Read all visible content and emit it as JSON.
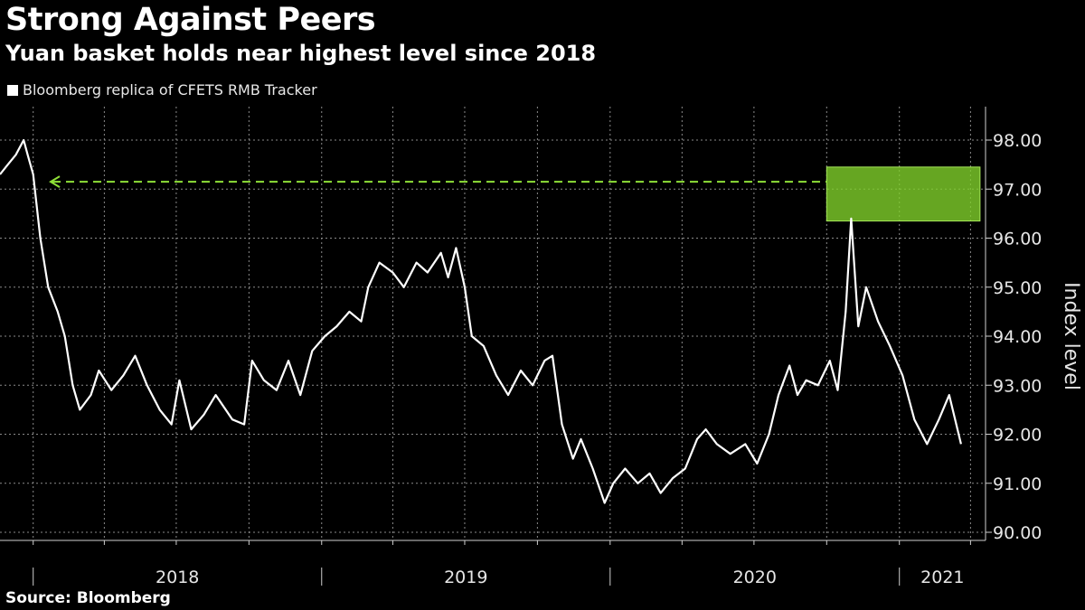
{
  "chart_data": {
    "type": "line",
    "title": "Strong Against Peers",
    "subtitle": "Yuan basket holds near highest level since 2018",
    "legend": "Bloomberg replica of CFETS RMB Tracker",
    "source": "Source: Bloomberg",
    "ylabel": "Index level",
    "ylim": [
      90.0,
      98.0
    ],
    "yticks": [
      "90.00",
      "91.00",
      "92.00",
      "93.00",
      "94.00",
      "95.00",
      "96.00",
      "97.00",
      "98.00"
    ],
    "xlim": [
      "2017-11-20",
      "2021-04-20"
    ],
    "xticks": [
      "2018",
      "2019",
      "2020",
      "2021"
    ],
    "grid": true,
    "line_color": "#ffffff",
    "highlight_color": "#7fd02a",
    "reference_level": 97.15,
    "highlight_box": {
      "x_range": [
        "2020-10-01",
        "2021-04-13"
      ],
      "y_range": [
        96.35,
        97.45
      ]
    },
    "series": [
      {
        "points": [
          [
            "2017-11-20",
            97.3
          ],
          [
            "2017-11-30",
            97.5
          ],
          [
            "2017-12-10",
            97.7
          ],
          [
            "2017-12-20",
            98.0
          ],
          [
            "2017-12-25",
            97.7
          ],
          [
            "2018-01-01",
            97.3
          ],
          [
            "2018-01-10",
            96.0
          ],
          [
            "2018-01-20",
            95.0
          ],
          [
            "2018-02-01",
            94.5
          ],
          [
            "2018-02-10",
            94.0
          ],
          [
            "2018-02-20",
            93.0
          ],
          [
            "2018-03-01",
            92.5
          ],
          [
            "2018-03-15",
            92.8
          ],
          [
            "2018-03-25",
            93.3
          ],
          [
            "2018-04-10",
            92.9
          ],
          [
            "2018-04-25",
            93.2
          ],
          [
            "2018-05-10",
            93.6
          ],
          [
            "2018-05-25",
            93.0
          ],
          [
            "2018-06-10",
            92.5
          ],
          [
            "2018-06-25",
            92.2
          ],
          [
            "2018-07-05",
            93.1
          ],
          [
            "2018-07-20",
            92.1
          ],
          [
            "2018-08-05",
            92.4
          ],
          [
            "2018-08-20",
            92.8
          ],
          [
            "2018-09-10",
            92.3
          ],
          [
            "2018-09-25",
            92.2
          ],
          [
            "2018-10-05",
            93.5
          ],
          [
            "2018-10-20",
            93.1
          ],
          [
            "2018-11-05",
            92.9
          ],
          [
            "2018-11-20",
            93.5
          ],
          [
            "2018-12-05",
            92.8
          ],
          [
            "2018-12-20",
            93.7
          ],
          [
            "2019-01-05",
            94.0
          ],
          [
            "2019-01-20",
            94.2
          ],
          [
            "2019-02-05",
            94.5
          ],
          [
            "2019-02-20",
            94.3
          ],
          [
            "2019-03-01",
            95.0
          ],
          [
            "2019-03-15",
            95.5
          ],
          [
            "2019-04-01",
            95.3
          ],
          [
            "2019-04-15",
            95.0
          ],
          [
            "2019-05-01",
            95.5
          ],
          [
            "2019-05-15",
            95.3
          ],
          [
            "2019-06-01",
            95.7
          ],
          [
            "2019-06-10",
            95.2
          ],
          [
            "2019-06-20",
            95.8
          ],
          [
            "2019-07-01",
            95.0
          ],
          [
            "2019-07-10",
            94.0
          ],
          [
            "2019-07-25",
            93.8
          ],
          [
            "2019-08-10",
            93.2
          ],
          [
            "2019-08-25",
            92.8
          ],
          [
            "2019-09-10",
            93.3
          ],
          [
            "2019-09-25",
            93.0
          ],
          [
            "2019-10-10",
            93.5
          ],
          [
            "2019-10-20",
            93.6
          ],
          [
            "2019-11-01",
            92.2
          ],
          [
            "2019-11-15",
            91.5
          ],
          [
            "2019-11-25",
            91.9
          ],
          [
            "2019-12-10",
            91.3
          ],
          [
            "2019-12-25",
            90.6
          ],
          [
            "2020-01-05",
            91.0
          ],
          [
            "2020-01-20",
            91.3
          ],
          [
            "2020-02-05",
            91.0
          ],
          [
            "2020-02-20",
            91.2
          ],
          [
            "2020-03-05",
            90.8
          ],
          [
            "2020-03-20",
            91.1
          ],
          [
            "2020-04-05",
            91.3
          ],
          [
            "2020-04-20",
            91.9
          ],
          [
            "2020-05-01",
            92.1
          ],
          [
            "2020-05-15",
            91.8
          ],
          [
            "2020-06-01",
            91.6
          ],
          [
            "2020-06-20",
            91.8
          ],
          [
            "2020-07-05",
            91.4
          ],
          [
            "2020-07-20",
            92.0
          ],
          [
            "2020-08-01",
            92.8
          ],
          [
            "2020-08-15",
            93.4
          ],
          [
            "2020-08-25",
            92.8
          ],
          [
            "2020-09-05",
            93.1
          ],
          [
            "2020-09-20",
            93.0
          ],
          [
            "2020-10-05",
            93.5
          ],
          [
            "2020-10-15",
            92.9
          ],
          [
            "2020-10-25",
            94.5
          ],
          [
            "2020-11-01",
            96.4
          ],
          [
            "2020-11-10",
            94.2
          ],
          [
            "2020-11-20",
            95.0
          ],
          [
            "2020-12-05",
            94.3
          ],
          [
            "2020-12-20",
            93.8
          ],
          [
            "2021-01-05",
            93.2
          ],
          [
            "2021-01-20",
            92.3
          ],
          [
            "2021-02-05",
            91.8
          ],
          [
            "2021-02-20",
            92.3
          ],
          [
            "2021-03-05",
            92.8
          ],
          [
            "2021-03-20",
            91.8
          ]
        ]
      }
    ]
  }
}
